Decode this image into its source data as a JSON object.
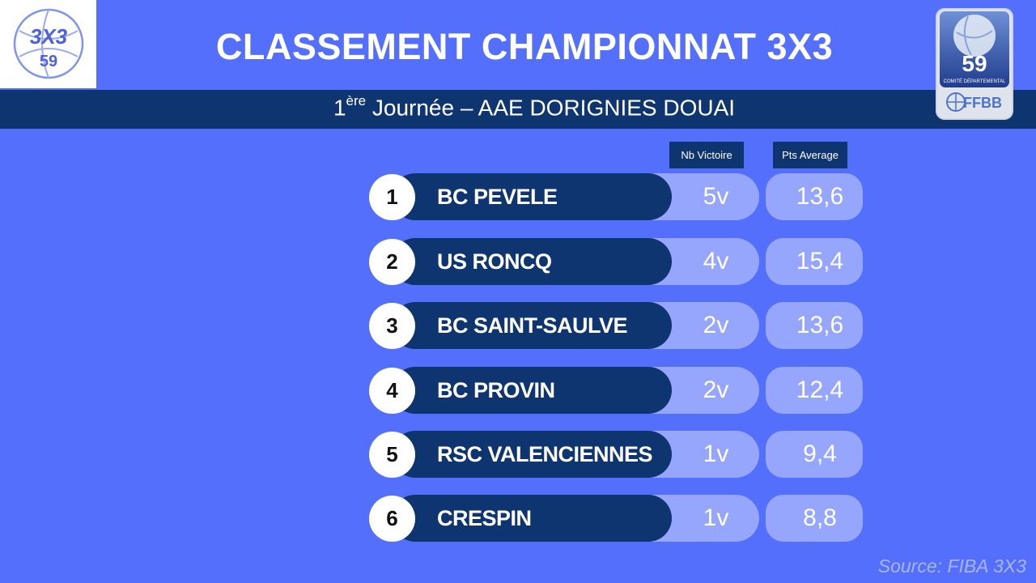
{
  "header": {
    "title": "CLASSEMENT CHAMPIONNAT 3X3",
    "subtitle_sup": "ère",
    "subtitle_rank": "1",
    "subtitle_rest": " Journée – AAE DORIGNIES DOUAI"
  },
  "logo_left": {
    "line1": "3X3",
    "line2": "59",
    "icon": "basketball-3x3-logo"
  },
  "badge": {
    "number": "59",
    "caption": "COMITÉ DÉPARTEMENTAL",
    "brand": "FFBB",
    "icon": "basketball-badge"
  },
  "columns": {
    "victories": "Nb Victoire",
    "average": "Pts Average"
  },
  "rows": [
    {
      "rank": "1",
      "team": "BC PEVELE",
      "victories": "5v",
      "average": "13,6"
    },
    {
      "rank": "2",
      "team": "US RONCQ",
      "victories": "4v",
      "average": "15,4"
    },
    {
      "rank": "3",
      "team": "BC SAINT-SAULVE",
      "victories": "2v",
      "average": "13,6"
    },
    {
      "rank": "4",
      "team": "BC PROVIN",
      "victories": "2v",
      "average": "12,4"
    },
    {
      "rank": "5",
      "team": "RSC VALENCIENNES",
      "victories": "1v",
      "average": "9,4"
    },
    {
      "rank": "6",
      "team": "CRESPIN",
      "victories": "1v",
      "average": "8,8"
    }
  ],
  "source": "Source: FIBA 3X3",
  "colors": {
    "background": "#536ffc",
    "navy": "#0f3571",
    "light_cell": "#96a6fc"
  }
}
